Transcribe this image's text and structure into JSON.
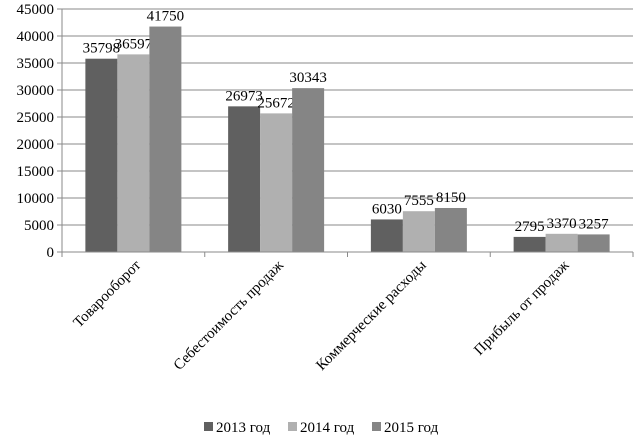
{
  "chart_data": {
    "type": "bar",
    "title": "",
    "xlabel": "",
    "ylabel": "",
    "ylim": [
      0,
      45000
    ],
    "yticks": [
      0,
      5000,
      10000,
      15000,
      20000,
      25000,
      30000,
      35000,
      40000,
      45000
    ],
    "grid": true,
    "legend_position": "bottom",
    "categories": [
      "Товарооборот",
      "Себестоимость продаж",
      "Коммерческие расходы",
      "Прибыль от продаж"
    ],
    "series": [
      {
        "name": "2013 год",
        "color": "#606060",
        "values": [
          35798,
          26973,
          6030,
          2795
        ]
      },
      {
        "name": "2014 год",
        "color": "#b0b0b0",
        "values": [
          36597,
          25672,
          7555,
          3370
        ]
      },
      {
        "name": "2015 год",
        "color": "#858585",
        "values": [
          41750,
          30343,
          8150,
          3257
        ]
      }
    ]
  }
}
